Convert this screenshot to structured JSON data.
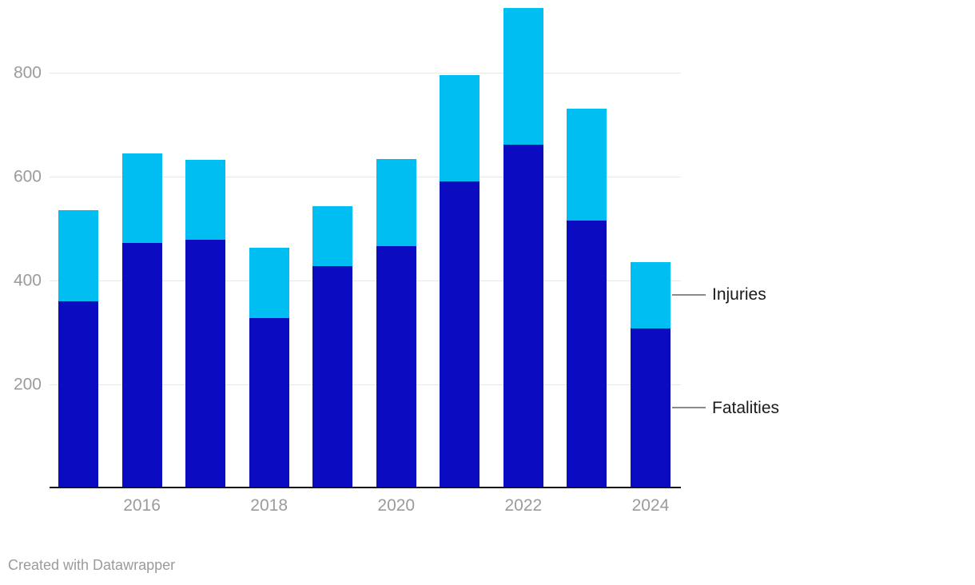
{
  "chart_data": {
    "type": "bar",
    "stacked": true,
    "title": "",
    "xlabel": "",
    "ylabel": "",
    "categories": [
      "2015",
      "2016",
      "2017",
      "2018",
      "2019",
      "2020",
      "2021",
      "2022",
      "2023",
      "2024"
    ],
    "series": [
      {
        "name": "Fatalities",
        "color": "#0b0bc2",
        "values": [
          360,
          472,
          478,
          328,
          427,
          466,
          591,
          662,
          515,
          308
        ]
      },
      {
        "name": "Injuries",
        "color": "#00bdf2",
        "values": [
          175,
          173,
          155,
          135,
          116,
          168,
          204,
          262,
          216,
          128
        ]
      }
    ],
    "totals": [
      535,
      645,
      633,
      463,
      543,
      634,
      795,
      924,
      731,
      436
    ],
    "y_ticks": [
      200,
      400,
      600,
      800
    ],
    "ylim": [
      0,
      940
    ],
    "x_tick_labels": [
      "2016",
      "2018",
      "2020",
      "2022",
      "2024"
    ],
    "x_tick_indices": [
      1,
      3,
      5,
      7,
      9
    ],
    "grid": "horizontal",
    "legend_position": "right-annotated",
    "legend": [
      {
        "label": "Injuries"
      },
      {
        "label": "Fatalities"
      }
    ]
  },
  "colors": {
    "fatalities": "#0b0bc2",
    "injuries": "#00bdf2",
    "gridline": "#e8e8e8",
    "axis_line": "#141414",
    "axis_text": "#9b9b9b",
    "legend_text": "#1a1a1a",
    "connector": "#8a8a8a"
  },
  "footer": {
    "credit": "Created with Datawrapper"
  }
}
